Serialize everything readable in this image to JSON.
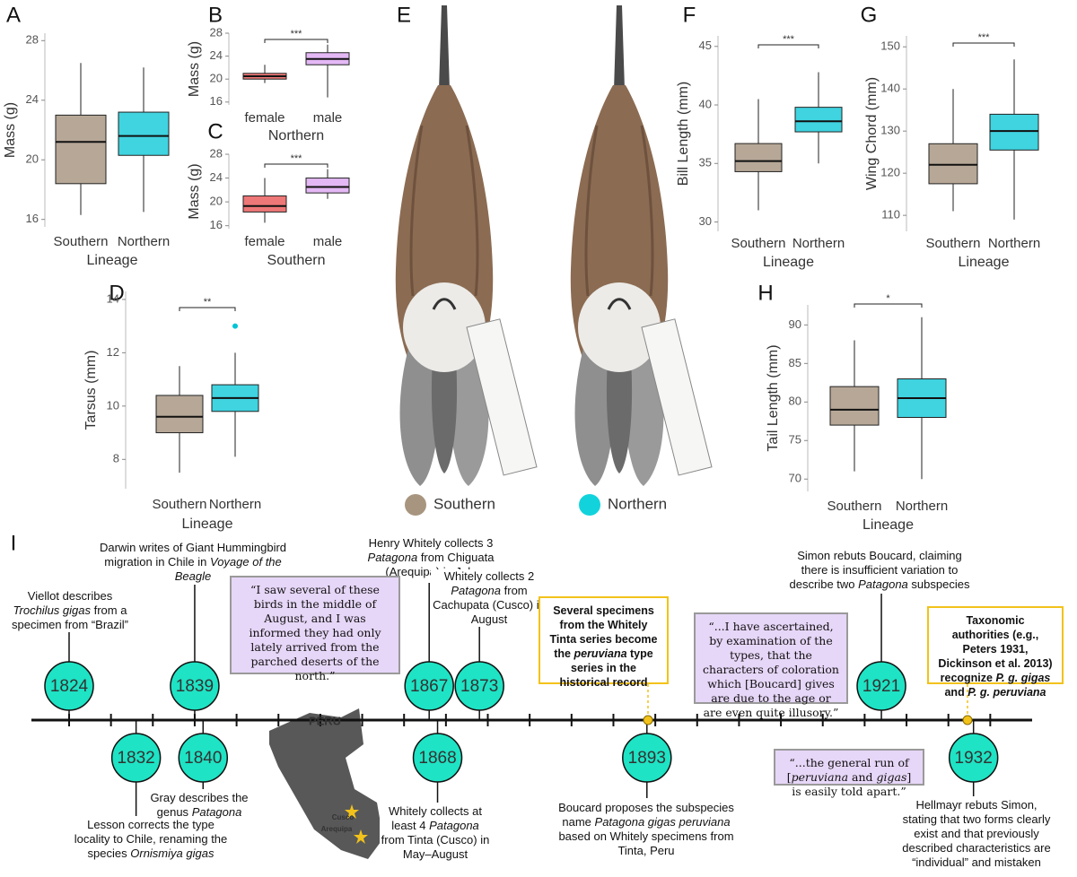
{
  "chart_data": [
    {
      "type": "box",
      "panel": "A",
      "ylabel": "Mass (g)",
      "xlabel": "Lineage",
      "categories": [
        "Southern",
        "Northern"
      ],
      "ylim": [
        15.5,
        28.5
      ],
      "yticks": [
        16,
        20,
        24,
        28
      ],
      "boxes": [
        {
          "min": 16.3,
          "q1": 18.4,
          "median": 21.2,
          "q3": 23.0,
          "max": 26.5,
          "color": "#9e8a74"
        },
        {
          "min": 16.5,
          "q1": 20.3,
          "median": 21.6,
          "q3": 23.2,
          "max": 26.2,
          "color": "#00c4d6"
        }
      ]
    },
    {
      "type": "box",
      "panel": "B",
      "ylabel": "Mass (g)",
      "xlabel": "Northern",
      "categories": [
        "female",
        "male"
      ],
      "ylim": [
        15.5,
        28
      ],
      "yticks": [
        16,
        20,
        24,
        28
      ],
      "significance": "***",
      "boxes": [
        {
          "min": 19.3,
          "q1": 20.0,
          "median": 20.5,
          "q3": 21.0,
          "max": 22.5,
          "color": "#e84a4a"
        },
        {
          "min": 16.8,
          "q1": 22.5,
          "median": 23.5,
          "q3": 24.6,
          "max": 26.0,
          "color": "#d9a0f0"
        }
      ]
    },
    {
      "type": "box",
      "panel": "C",
      "ylabel": "Mass (g)",
      "xlabel": "Southern",
      "categories": [
        "female",
        "male"
      ],
      "ylim": [
        15.5,
        28
      ],
      "yticks": [
        16,
        20,
        24,
        28
      ],
      "significance": "***",
      "boxes": [
        {
          "min": 16.5,
          "q1": 18.3,
          "median": 19.3,
          "q3": 21.0,
          "max": 24.0,
          "color": "#e84a4a"
        },
        {
          "min": 20.5,
          "q1": 21.5,
          "median": 22.5,
          "q3": 24.0,
          "max": 25.5,
          "color": "#d9a0f0"
        }
      ]
    },
    {
      "type": "box",
      "panel": "D",
      "ylabel": "Tarsus (mm)",
      "xlabel": "Lineage",
      "categories": [
        "Southern",
        "Northern"
      ],
      "ylim": [
        6.9,
        14.3
      ],
      "yticks": [
        8,
        10,
        12,
        14
      ],
      "significance": "**",
      "boxes": [
        {
          "min": 7.5,
          "q1": 9.0,
          "median": 9.6,
          "q3": 10.4,
          "max": 11.5,
          "color": "#9e8a74"
        },
        {
          "min": 8.1,
          "q1": 9.8,
          "median": 10.3,
          "q3": 10.8,
          "max": 12.0,
          "color": "#00c4d6"
        }
      ],
      "outliers": [
        [],
        [
          13
        ]
      ]
    },
    {
      "type": "box",
      "panel": "F",
      "ylabel": "Bill Length (mm)",
      "xlabel": "Lineage",
      "categories": [
        "Southern",
        "Northern"
      ],
      "ylim": [
        29.2,
        45.9
      ],
      "yticks": [
        30,
        35,
        40,
        45
      ],
      "significance": "***",
      "boxes": [
        {
          "min": 31.0,
          "q1": 34.3,
          "median": 35.2,
          "q3": 36.7,
          "max": 40.5,
          "color": "#9e8a74"
        },
        {
          "min": 35.0,
          "q1": 37.7,
          "median": 38.6,
          "q3": 39.8,
          "max": 42.8,
          "color": "#00c4d6"
        }
      ]
    },
    {
      "type": "box",
      "panel": "G",
      "ylabel": "Wing Chord (mm)",
      "xlabel": "Lineage",
      "categories": [
        "Southern",
        "Northern"
      ],
      "ylim": [
        106.2,
        152.6
      ],
      "yticks": [
        110,
        120,
        130,
        140,
        150
      ],
      "significance": "***",
      "boxes": [
        {
          "min": 111,
          "q1": 117.5,
          "median": 122,
          "q3": 127,
          "max": 140,
          "color": "#9e8a74"
        },
        {
          "min": 109,
          "q1": 125.5,
          "median": 130,
          "q3": 134,
          "max": 147,
          "color": "#00c4d6"
        }
      ]
    },
    {
      "type": "box",
      "panel": "H",
      "ylabel": "Tail Length (mm)",
      "xlabel": "Lineage",
      "categories": [
        "Southern",
        "Northern"
      ],
      "ylim": [
        68.4,
        92.6
      ],
      "yticks": [
        70,
        75,
        80,
        85,
        90
      ],
      "significance": "*",
      "boxes": [
        {
          "min": 71,
          "q1": 77,
          "median": 79,
          "q3": 82,
          "max": 88,
          "color": "#9e8a74"
        },
        {
          "min": 70,
          "q1": 78,
          "median": 80.5,
          "q3": 83,
          "max": 91,
          "color": "#00c4d6"
        }
      ]
    }
  ],
  "panel_e": {
    "label": "E",
    "legend": [
      {
        "name": "Southern",
        "color": "#a8957f"
      },
      {
        "name": "Northern",
        "color": "#12d3dc"
      }
    ]
  },
  "timeline": {
    "label": "I",
    "xlim": [
      1819.5,
      1939
    ],
    "circle_color": "#1ee3c4",
    "events": [
      {
        "year": 1824,
        "side": "above",
        "text": [
          "Viellot describes ",
          "Trochilus gigas",
          " from a specimen from “Brazil”"
        ]
      },
      {
        "year": 1832,
        "side": "below",
        "text": [
          "Lesson corrects the type locality to Chile, renaming the species ",
          "Ornismiya gigas"
        ]
      },
      {
        "year": 1839,
        "side": "above",
        "text": [
          "Darwin writes of Giant Hummingbird migration in Chile in ",
          "Voyage of the Beagle"
        ]
      },
      {
        "year": 1840,
        "side": "below",
        "text": [
          "Gray describes the genus ",
          "Patagona"
        ]
      },
      {
        "year": 1867,
        "side": "above",
        "text": [
          "Henry Whitely collects 3 ",
          "Patagona",
          " from Chiguata (Arequipa) in July"
        ]
      },
      {
        "year": 1868,
        "side": "below",
        "text": [
          "Whitely collects at least 4 ",
          "Patagona",
          " from Tinta (Cusco) in May–August"
        ]
      },
      {
        "year": 1873,
        "side": "above",
        "text": [
          "Whitely collects 2 ",
          "Patagona",
          " from Cachupata (Cusco) in August"
        ]
      },
      {
        "year": 1893,
        "side": "below",
        "text": [
          "Boucard proposes the subspecies name ",
          "Patagona gigas peruviana",
          " based on Whitely specimens from Tinta, Peru"
        ]
      },
      {
        "year": 1921,
        "side": "above",
        "text": [
          "Simon rebuts Boucard, claiming there is insufficient variation to describe two ",
          "Patagona",
          " subspecies"
        ]
      },
      {
        "year": 1932,
        "side": "below",
        "text": [
          "Hellmayr rebuts Simon, stating that two forms clearly exist and that previously described characteristics are “individual” and mistaken"
        ]
      }
    ],
    "quotes": [
      {
        "text": [
          "“I saw several of these birds in the middle of August, and I was informed they had only lately arrived from the parched deserts of the north.”"
        ]
      },
      {
        "text": [
          "“...I have ascertained, by examination of the types, that the characters of coloration which [Boucard] gives are due to the age or are even quite illusory.”"
        ]
      },
      {
        "text": [
          "“...the general run of [",
          "peruviana",
          " and ",
          "gigas",
          "] is easily told apart.”"
        ]
      }
    ],
    "notes": [
      {
        "text": [
          "Several specimens from the Whitely Tinta series become the ",
          "peruviana",
          " type series in the historical record"
        ]
      },
      {
        "text": [
          "Taxonomic authorities (e.g., Peters 1931, Dickinson et al. 2013) recognize ",
          "P. g. gigas",
          " and ",
          "P. g. peruviana"
        ]
      }
    ],
    "map": {
      "title": "PERU",
      "places": [
        "Cusco",
        "Arequipa"
      ]
    }
  }
}
